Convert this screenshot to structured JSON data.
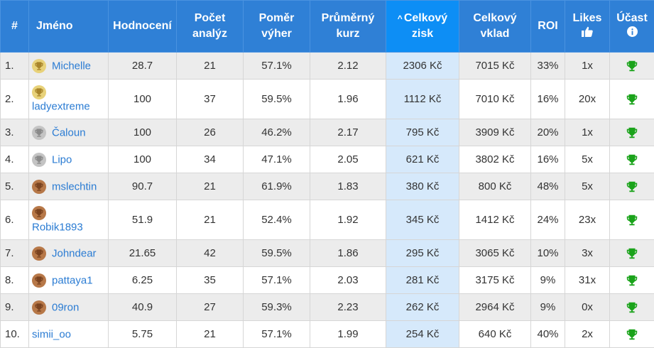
{
  "headers": [
    {
      "key": "rank",
      "lines": [
        "#"
      ]
    },
    {
      "key": "name",
      "lines": [
        "Jméno"
      ]
    },
    {
      "key": "rating",
      "lines": [
        "Hodnocení"
      ]
    },
    {
      "key": "analyses",
      "lines": [
        "Počet",
        "analýz"
      ]
    },
    {
      "key": "winratio",
      "lines": [
        "Poměr",
        "výher"
      ]
    },
    {
      "key": "avgodds",
      "lines": [
        "Průměrný",
        "kurz"
      ]
    },
    {
      "key": "profit",
      "lines": [
        "Celkový",
        "zisk"
      ],
      "sorted": true,
      "sort_arrow": "^"
    },
    {
      "key": "stake",
      "lines": [
        "Celkový",
        "vklad"
      ]
    },
    {
      "key": "roi",
      "lines": [
        "ROI"
      ]
    },
    {
      "key": "likes",
      "lines": [
        "Likes"
      ],
      "icon": "thumbs-up-icon"
    },
    {
      "key": "participation",
      "lines": [
        "Účast"
      ],
      "icon": "info-icon"
    }
  ],
  "rows": [
    {
      "rank": "1.",
      "medal": "gold",
      "name": "Michelle",
      "wrap": false,
      "rating": "28.7",
      "analyses": "21",
      "winratio": "57.1%",
      "avgodds": "2.12",
      "profit": "2306 Kč",
      "stake": "7015 Kč",
      "roi": "33%",
      "likes": "1x"
    },
    {
      "rank": "2.",
      "medal": "gold",
      "name": "ladyextreme",
      "wrap": true,
      "rating": "100",
      "analyses": "37",
      "winratio": "59.5%",
      "avgodds": "1.96",
      "profit": "1112 Kč",
      "stake": "7010 Kč",
      "roi": "16%",
      "likes": "20x"
    },
    {
      "rank": "3.",
      "medal": "silver",
      "name": "Čaloun",
      "wrap": false,
      "rating": "100",
      "analyses": "26",
      "winratio": "46.2%",
      "avgodds": "2.17",
      "profit": "795 Kč",
      "stake": "3909 Kč",
      "roi": "20%",
      "likes": "1x"
    },
    {
      "rank": "4.",
      "medal": "silver",
      "name": "Lipo",
      "wrap": false,
      "rating": "100",
      "analyses": "34",
      "winratio": "47.1%",
      "avgodds": "2.05",
      "profit": "621 Kč",
      "stake": "3802 Kč",
      "roi": "16%",
      "likes": "5x"
    },
    {
      "rank": "5.",
      "medal": "bronze",
      "name": "mslechtin",
      "wrap": false,
      "rating": "90.7",
      "analyses": "21",
      "winratio": "61.9%",
      "avgodds": "1.83",
      "profit": "380 Kč",
      "stake": "800 Kč",
      "roi": "48%",
      "likes": "5x"
    },
    {
      "rank": "6.",
      "medal": "bronze",
      "name": "Robik1893",
      "wrap": true,
      "rating": "51.9",
      "analyses": "21",
      "winratio": "52.4%",
      "avgodds": "1.92",
      "profit": "345 Kč",
      "stake": "1412 Kč",
      "roi": "24%",
      "likes": "23x"
    },
    {
      "rank": "7.",
      "medal": "bronze",
      "name": "Johndear",
      "wrap": false,
      "rating": "21.65",
      "analyses": "42",
      "winratio": "59.5%",
      "avgodds": "1.86",
      "profit": "295 Kč",
      "stake": "3065 Kč",
      "roi": "10%",
      "likes": "3x"
    },
    {
      "rank": "8.",
      "medal": "bronze",
      "name": "pattaya1",
      "wrap": false,
      "rating": "6.25",
      "analyses": "35",
      "winratio": "57.1%",
      "avgodds": "2.03",
      "profit": "281 Kč",
      "stake": "3175 Kč",
      "roi": "9%",
      "likes": "31x"
    },
    {
      "rank": "9.",
      "medal": "bronze",
      "name": "09ron",
      "wrap": false,
      "rating": "40.9",
      "analyses": "27",
      "winratio": "59.3%",
      "avgodds": "2.23",
      "profit": "262 Kč",
      "stake": "2964 Kč",
      "roi": "9%",
      "likes": "0x"
    },
    {
      "rank": "10.",
      "medal": null,
      "name": "simii_oo",
      "wrap": false,
      "rating": "5.75",
      "analyses": "21",
      "winratio": "57.1%",
      "avgodds": "1.99",
      "profit": "254 Kč",
      "stake": "640 Kč",
      "roi": "40%",
      "likes": "2x"
    }
  ],
  "participation_icon": "trophy-icon",
  "colors": {
    "header": "#2f80d6",
    "sorted_header": "#0d8ef5",
    "highlight": "#d6e9fb",
    "link": "#2b7cd3",
    "trophy": "#1aa31a",
    "gold": "#e8d27a",
    "silver": "#c4c4c4",
    "bronze": "#b77848"
  }
}
